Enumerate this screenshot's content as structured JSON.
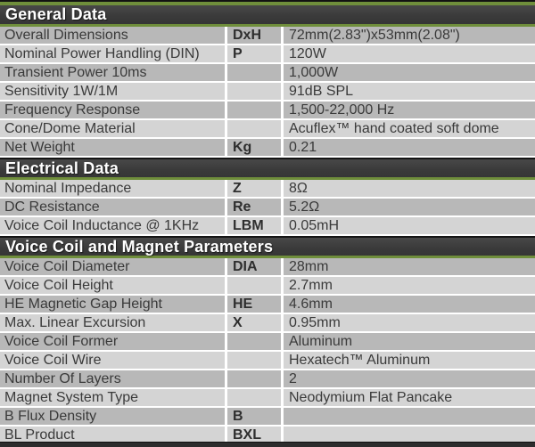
{
  "document": {
    "kind": "speaker-specification-table"
  },
  "colors": {
    "accent_green": "#6f8e3b",
    "header_bar_bg": "#3d3d3d",
    "header_text": "#ffffff",
    "row_dark": "#b8b8b8",
    "row_light": "#d4d4d4",
    "row_text": "#3a3a3a",
    "separator": "#ffffff",
    "edge_bar": "#1a1a1a"
  },
  "sections": [
    {
      "title": "General Data",
      "rows": [
        {
          "label": "Overall Dimensions",
          "symbol": "DxH",
          "value": "72mm(2.83\")x53mm(2.08\")"
        },
        {
          "label": "Nominal Power Handling (DIN)",
          "symbol": "P",
          "value": "120W"
        },
        {
          "label": "Transient Power 10ms",
          "symbol": "",
          "value": "1,000W"
        },
        {
          "label": "Sensitivity 1W/1M",
          "symbol": "",
          "value": "91dB SPL"
        },
        {
          "label": "Frequency Response",
          "symbol": "",
          "value": "1,500-22,000 Hz"
        },
        {
          "label": "Cone/Dome Material",
          "symbol": "",
          "value": "Acuflex™ hand coated soft dome"
        },
        {
          "label": "Net Weight",
          "symbol": "Kg",
          "value": "0.21"
        }
      ]
    },
    {
      "title": "Electrical Data",
      "rows": [
        {
          "label": "Nominal Impedance",
          "symbol": "Z",
          "value": "8Ω"
        },
        {
          "label": "DC Resistance",
          "symbol": "Re",
          "value": "5.2Ω"
        },
        {
          "label": "Voice Coil Inductance @ 1KHz",
          "symbol": "LBM",
          "value": "0.05mH"
        }
      ]
    },
    {
      "title": "Voice Coil and Magnet Parameters",
      "rows": [
        {
          "label": "Voice Coil Diameter",
          "symbol": "DIA",
          "value": "28mm"
        },
        {
          "label": "Voice Coil Height",
          "symbol": "",
          "value": "2.7mm"
        },
        {
          "label": "HE Magnetic Gap Height",
          "symbol": "HE",
          "value": "4.6mm"
        },
        {
          "label": "Max. Linear Excursion",
          "symbol": "X",
          "value": "0.95mm"
        },
        {
          "label": "Voice Coil Former",
          "symbol": "",
          "value": "Aluminum"
        },
        {
          "label": "Voice Coil Wire",
          "symbol": "",
          "value": "Hexatech™ Aluminum"
        },
        {
          "label": "Number Of Layers",
          "symbol": "",
          "value": "2"
        },
        {
          "label": "Magnet System Type",
          "symbol": "",
          "value": "Neodymium Flat Pancake"
        },
        {
          "label": "B Flux Density",
          "symbol": "B",
          "value": ""
        },
        {
          "label": "BL Product",
          "symbol": "BXL",
          "value": ""
        }
      ]
    }
  ]
}
